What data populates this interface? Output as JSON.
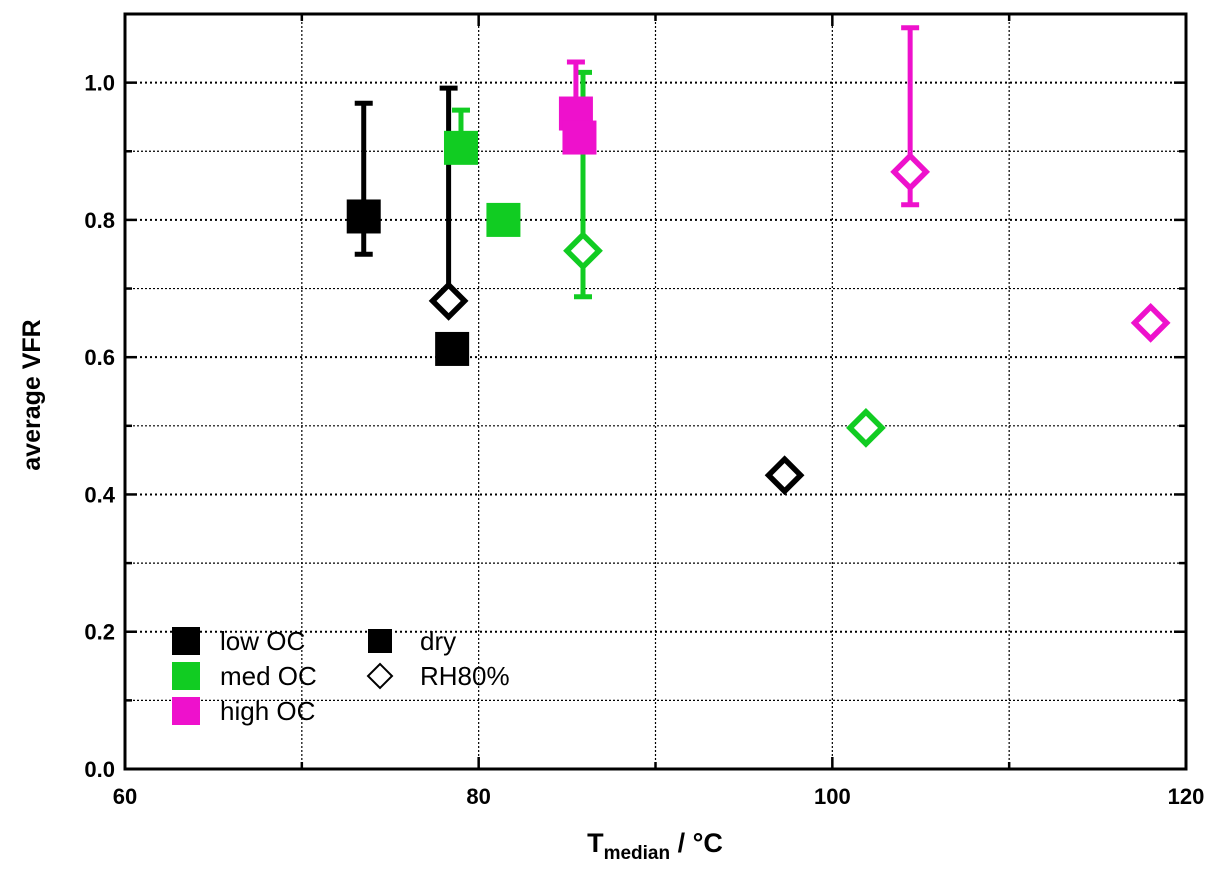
{
  "chart_data": {
    "type": "scatter",
    "xlabel": {
      "main": "T",
      "sub": "median",
      "suffix": " / °C"
    },
    "ylabel": "average VFR",
    "xlim": [
      60,
      120
    ],
    "ylim": [
      0.0,
      1.1
    ],
    "xticks": [
      60,
      80,
      100,
      120
    ],
    "xticks_minor": [
      70,
      90,
      110
    ],
    "yticks": [
      0.0,
      0.2,
      0.4,
      0.6,
      0.8,
      1.0
    ],
    "y_tick_labels": [
      "0.0",
      "0.2",
      "0.4",
      "0.6",
      "0.8",
      "1.0"
    ],
    "grid": true,
    "legend_position": "bottom-left",
    "series": [
      {
        "name": "low OC",
        "color": "#000000",
        "condition": "dry",
        "marker": "square",
        "points": [
          {
            "x": 73.5,
            "y": 0.805,
            "err_lo": 0.75,
            "err_hi": 0.97
          },
          {
            "x": 78.5,
            "y": 0.612
          }
        ]
      },
      {
        "name": "low OC",
        "color": "#000000",
        "condition": "RH80%",
        "marker": "diamond",
        "points": [
          {
            "x": 78.3,
            "y": 0.682,
            "err_lo": 0.682,
            "err_hi": 0.992
          },
          {
            "x": 97.3,
            "y": 0.428
          }
        ]
      },
      {
        "name": "med OC",
        "color": "#11cc22",
        "condition": "dry",
        "marker": "square",
        "points": [
          {
            "x": 79.0,
            "y": 0.905,
            "err_lo": 0.905,
            "err_hi": 0.96
          },
          {
            "x": 81.4,
            "y": 0.8
          }
        ]
      },
      {
        "name": "med OC",
        "color": "#11cc22",
        "condition": "RH80%",
        "marker": "diamond",
        "points": [
          {
            "x": 85.9,
            "y": 0.755,
            "err_lo": 0.688,
            "err_hi": 1.015
          },
          {
            "x": 101.9,
            "y": 0.497
          }
        ]
      },
      {
        "name": "high OC",
        "color": "#ee11cc",
        "condition": "dry",
        "marker": "square",
        "points": [
          {
            "x": 85.5,
            "y": 0.955,
            "err_lo": 0.955,
            "err_hi": 1.03
          },
          {
            "x": 85.7,
            "y": 0.92
          }
        ]
      },
      {
        "name": "high OC",
        "color": "#ee11cc",
        "condition": "RH80%",
        "marker": "diamond",
        "points": [
          {
            "x": 104.4,
            "y": 0.87,
            "err_lo": 0.822,
            "err_hi": 1.08
          },
          {
            "x": 118.0,
            "y": 0.65
          }
        ]
      }
    ],
    "legend": {
      "colors": [
        {
          "label": "low OC",
          "color": "#000000"
        },
        {
          "label": "med OC",
          "color": "#11cc22"
        },
        {
          "label": "high OC",
          "color": "#ee11cc"
        }
      ],
      "markers": [
        {
          "label": "dry",
          "marker": "square"
        },
        {
          "label": "RH80%",
          "marker": "diamond"
        }
      ]
    }
  }
}
